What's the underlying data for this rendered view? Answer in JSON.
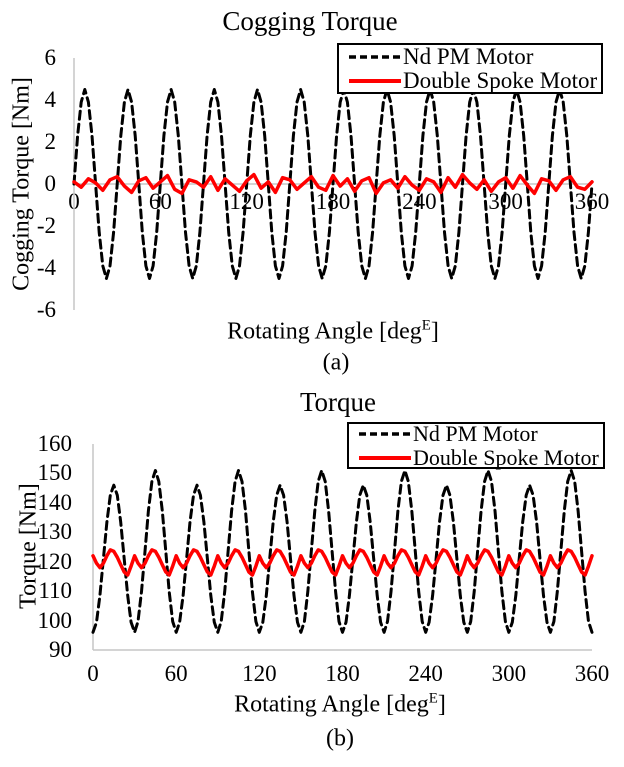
{
  "style": {
    "background": "#FFFFFF",
    "axis_color": "#C6C6C6",
    "text_color": "#000000",
    "series_black": "#000000",
    "series_red": "#FF0000",
    "legend_border": "#000000"
  },
  "chart_data": [
    {
      "type": "line",
      "title": "Cogging Torque",
      "caption": "(a)",
      "xlabel": "Rotating Angle [deg",
      "xlabel_sup": "E",
      "xlabel_end": "]",
      "ylabel": "Cogging Torque [Nm]",
      "xlim": [
        0,
        360
      ],
      "ylim": [
        -6,
        6
      ],
      "xticks": [
        0,
        60,
        120,
        180,
        240,
        300,
        360
      ],
      "yticks": [
        6,
        4,
        2,
        0,
        -2,
        -4,
        -6
      ],
      "legend_position": "top-right",
      "grid": false,
      "series": [
        {
          "name": "Nd PM Motor",
          "color": "#000000",
          "dash": "8 5",
          "width": 3,
          "x_step": 2.5,
          "values": [
            0,
            2.3,
            3.9,
            4.5,
            3.9,
            2.3,
            0,
            -2.3,
            -3.9,
            -4.5,
            -3.9,
            -2.3,
            0,
            2.3,
            3.9,
            4.5,
            3.9,
            2.3,
            0,
            -2.3,
            -3.9,
            -4.5,
            -3.9,
            -2.3,
            0,
            2.3,
            3.9,
            4.5,
            3.9,
            2.3,
            0,
            -2.3,
            -3.9,
            -4.5,
            -3.9,
            -2.3,
            0,
            2.3,
            3.9,
            4.5,
            3.9,
            2.3,
            0,
            -2.3,
            -3.9,
            -4.5,
            -3.9,
            -2.3,
            0,
            2.3,
            3.9,
            4.5,
            3.9,
            2.3,
            0,
            -2.3,
            -3.9,
            -4.5,
            -3.9,
            -2.3,
            0,
            2.3,
            3.9,
            4.5,
            3.9,
            2.3,
            0,
            -2.3,
            -3.9,
            -4.5,
            -3.9,
            -2.3,
            0,
            2.3,
            3.9,
            4.5,
            3.9,
            2.3,
            0,
            -2.3,
            -3.9,
            -4.5,
            -3.9,
            -2.3,
            0,
            2.3,
            3.9,
            4.5,
            3.9,
            2.3,
            0,
            -2.3,
            -3.9,
            -4.5,
            -3.9,
            -2.3,
            0,
            2.3,
            3.9,
            4.5,
            3.9,
            2.3,
            0,
            -2.3,
            -3.9,
            -4.5,
            -3.9,
            -2.3,
            0,
            2.3,
            3.9,
            4.5,
            3.9,
            2.3,
            0,
            -2.3,
            -3.9,
            -4.5,
            -3.9,
            -2.3,
            0,
            2.3,
            3.9,
            4.5,
            3.9,
            2.3,
            0,
            -2.3,
            -3.9,
            -4.5,
            -3.9,
            -2.3,
            0,
            2.3,
            3.9,
            4.5,
            3.9,
            2.3,
            0,
            -2.3,
            -3.9,
            -4.5,
            -3.9,
            -2.3,
            0
          ]
        },
        {
          "name": "Double Spoke Motor",
          "color": "#FF0000",
          "dash": "",
          "width": 3.5,
          "x_step": 5,
          "values": [
            0.1,
            -0.15,
            0.25,
            0.05,
            -0.3,
            0.2,
            0.35,
            -0.1,
            -0.4,
            0.15,
            0.3,
            -0.2,
            0.1,
            0.4,
            -0.25,
            -0.45,
            0.2,
            0.1,
            -0.15,
            0.35,
            -0.3,
            0.25,
            -0.05,
            -0.35,
            0.15,
            0.45,
            -0.2,
            0.1,
            -0.4,
            0.3,
            0.2,
            -0.25,
            0.05,
            0.35,
            -0.15,
            -0.3,
            0.4,
            -0.1,
            0.25,
            -0.35,
            0.15,
            0.3,
            -0.45,
            0.05,
            0.2,
            -0.2,
            0.35,
            -0.05,
            -0.3,
            0.25,
            0.1,
            -0.4,
            0.3,
            -0.15,
            0.45,
            0.05,
            -0.25,
            0.2,
            -0.35,
            0.1,
            0.3,
            -0.2,
            0.4,
            -0.05,
            -0.45,
            0.25,
            0.15,
            -0.3,
            0.2,
            0.35,
            -0.15,
            -0.25,
            0.1
          ]
        }
      ]
    },
    {
      "type": "line",
      "title": "Torque",
      "caption": "(b)",
      "xlabel": "Rotating Angle [deg",
      "xlabel_sup": "E",
      "xlabel_end": "]",
      "ylabel": "Torque [Nm]",
      "xlim": [
        0,
        360
      ],
      "ylim": [
        90,
        160
      ],
      "xticks": [
        0,
        60,
        120,
        180,
        240,
        300,
        360
      ],
      "yticks": [
        160,
        150,
        140,
        130,
        120,
        110,
        100,
        90
      ],
      "legend_position": "top-right",
      "grid": false,
      "series": [
        {
          "name": "Nd PM Motor",
          "color": "#000000",
          "dash": "8 5",
          "width": 3,
          "x_step": 2.5,
          "values": [
            96,
            99.4,
            108.5,
            121,
            133.5,
            142.6,
            146,
            142.6,
            133.5,
            121,
            108.5,
            99.4,
            96,
            99.7,
            109.8,
            123.5,
            137.3,
            147.3,
            151,
            147.3,
            137.3,
            123.5,
            109.8,
            99.7,
            96,
            99.4,
            108.5,
            121,
            133.5,
            142.6,
            146,
            142.6,
            133.5,
            121,
            108.5,
            99.4,
            96,
            99.7,
            109.8,
            123.5,
            137.3,
            147.3,
            151,
            147.3,
            137.3,
            123.5,
            109.8,
            99.7,
            96,
            99.4,
            108.5,
            121,
            133.5,
            142.6,
            146,
            142.6,
            133.5,
            121,
            108.5,
            99.4,
            96,
            99.7,
            109.8,
            123.5,
            137.3,
            147.3,
            151,
            147.3,
            137.3,
            123.5,
            109.8,
            99.7,
            96,
            99.4,
            108.5,
            121,
            133.5,
            142.6,
            146,
            142.6,
            133.5,
            121,
            108.5,
            99.4,
            96,
            99.7,
            109.8,
            123.5,
            137.3,
            147.3,
            151,
            147.3,
            137.3,
            123.5,
            109.8,
            99.7,
            96,
            99.4,
            108.5,
            121,
            133.5,
            142.6,
            146,
            142.6,
            133.5,
            121,
            108.5,
            99.4,
            96,
            99.7,
            109.8,
            123.5,
            137.3,
            147.3,
            151,
            147.3,
            137.3,
            123.5,
            109.8,
            99.7,
            96,
            99.4,
            108.5,
            121,
            133.5,
            142.6,
            146,
            142.6,
            133.5,
            121,
            108.5,
            99.4,
            96,
            99.7,
            109.8,
            123.5,
            137.3,
            147.3,
            151,
            147.3,
            137.3,
            123.5,
            109.8,
            99.7,
            96
          ]
        },
        {
          "name": "Double Spoke Motor",
          "color": "#FF0000",
          "dash": "",
          "width": 3.5,
          "x_step": 2.5,
          "values": [
            122,
            119.5,
            118,
            119.5,
            122,
            124,
            123.5,
            121.5,
            119,
            116.5,
            115.5,
            118.5,
            122,
            119.5,
            118,
            119.5,
            122,
            124,
            123.5,
            121.5,
            119,
            116.5,
            115.5,
            118.5,
            122,
            119.5,
            118,
            119.5,
            122,
            124,
            123.5,
            121.5,
            119,
            116.5,
            115.5,
            118.5,
            122,
            119.5,
            118,
            119.5,
            122,
            124,
            123.5,
            121.5,
            119,
            116.5,
            115.5,
            118.5,
            122,
            119.5,
            118,
            119.5,
            122,
            124,
            123.5,
            121.5,
            119,
            116.5,
            115.5,
            118.5,
            122,
            119.5,
            118,
            119.5,
            122,
            124,
            123.5,
            121.5,
            119,
            116.5,
            115.5,
            118.5,
            122,
            119.5,
            118,
            119.5,
            122,
            124,
            123.5,
            121.5,
            119,
            116.5,
            115.5,
            118.5,
            122,
            119.5,
            118,
            119.5,
            122,
            124,
            123.5,
            121.5,
            119,
            116.5,
            115.5,
            118.5,
            122,
            119.5,
            118,
            119.5,
            122,
            124,
            123.5,
            121.5,
            119,
            116.5,
            115.5,
            118.5,
            122,
            119.5,
            118,
            119.5,
            122,
            124,
            123.5,
            121.5,
            119,
            116.5,
            115.5,
            118.5,
            122,
            119.5,
            118,
            119.5,
            122,
            124,
            123.5,
            121.5,
            119,
            116.5,
            115.5,
            118.5,
            122,
            119.5,
            118,
            119.5,
            122,
            124,
            123.5,
            121.5,
            119,
            116.5,
            115.5,
            118.5,
            122
          ]
        }
      ]
    }
  ]
}
